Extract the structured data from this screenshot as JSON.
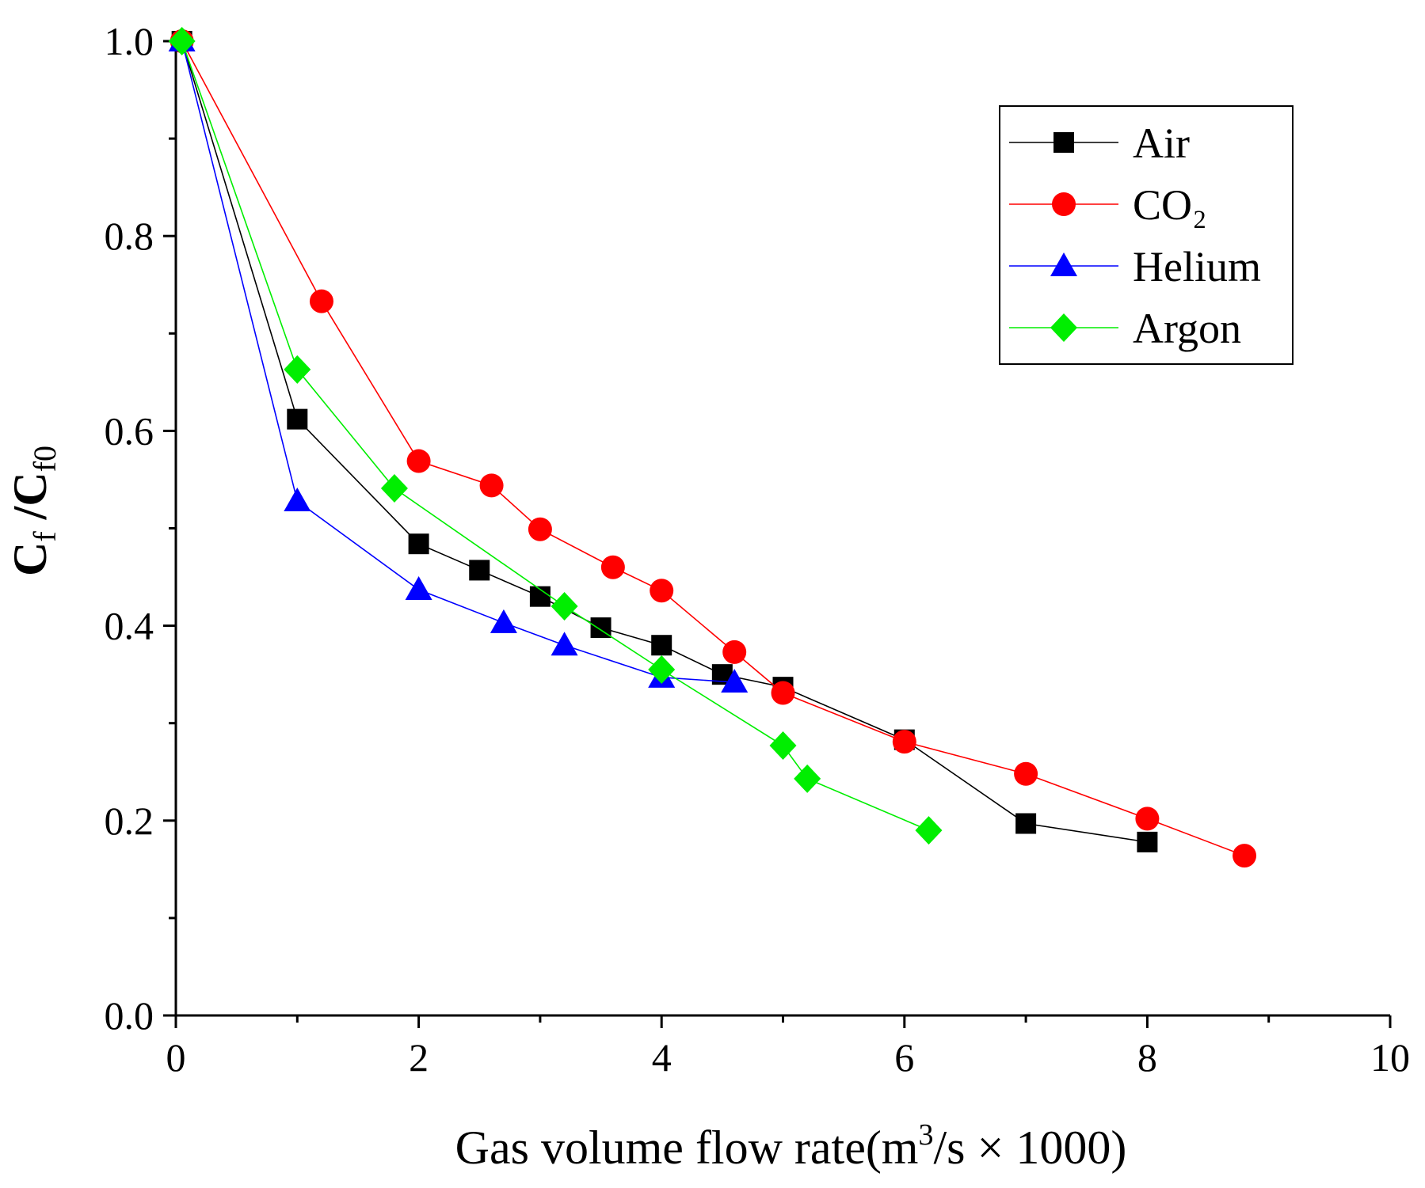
{
  "chart_data": {
    "type": "line",
    "title": "",
    "xlabel": "Gas volume flow rate(m³/s × 1000)",
    "xlabel_parts": {
      "prefix": "Gas volume flow rate(m",
      "sup": "3",
      "suffix": "/s × 1000)"
    },
    "ylabel": "Cf /Cf0",
    "ylabel_parts": {
      "c1": "C",
      "sub1": "f",
      "slash": " /C",
      "sub2": "f0"
    },
    "xlim": [
      0,
      10
    ],
    "ylim": [
      0,
      1.0
    ],
    "xticks": [
      "0",
      "2",
      "4",
      "6",
      "8",
      "10"
    ],
    "yticks": [
      "0.0",
      "0.2",
      "0.4",
      "0.6",
      "0.8",
      "1.0"
    ],
    "grid": false,
    "legend_position": "top-right",
    "series": [
      {
        "name": "Air",
        "color": "#000000",
        "marker": "square",
        "x": [
          0.05,
          1.0,
          2.0,
          2.5,
          3.0,
          3.5,
          4.0,
          4.5,
          5.0,
          6.0,
          7.0,
          8.0
        ],
        "y": [
          1.0,
          0.612,
          0.484,
          0.457,
          0.43,
          0.398,
          0.38,
          0.35,
          0.337,
          0.283,
          0.197,
          0.178
        ]
      },
      {
        "name": "CO₂",
        "color": "#ff0000",
        "marker": "circle",
        "x": [
          0.05,
          1.2,
          2.0,
          2.6,
          3.0,
          3.6,
          4.0,
          4.6,
          5.0,
          6.0,
          7.0,
          8.0,
          8.8
        ],
        "y": [
          1.0,
          0.733,
          0.569,
          0.544,
          0.499,
          0.46,
          0.436,
          0.373,
          0.331,
          0.281,
          0.248,
          0.202,
          0.164
        ]
      },
      {
        "name": "Helium",
        "color": "#0000ff",
        "marker": "triangle",
        "x": [
          0.05,
          1.0,
          2.0,
          2.7,
          3.2,
          4.0,
          4.6
        ],
        "y": [
          1.0,
          0.528,
          0.437,
          0.403,
          0.38,
          0.347,
          0.342
        ]
      },
      {
        "name": "Argon",
        "color": "#00ee00",
        "marker": "diamond",
        "x": [
          0.05,
          1.0,
          1.8,
          3.2,
          4.0,
          5.0,
          5.2,
          6.2
        ],
        "y": [
          1.0,
          0.663,
          0.541,
          0.42,
          0.355,
          0.277,
          0.243,
          0.19
        ]
      }
    ]
  }
}
